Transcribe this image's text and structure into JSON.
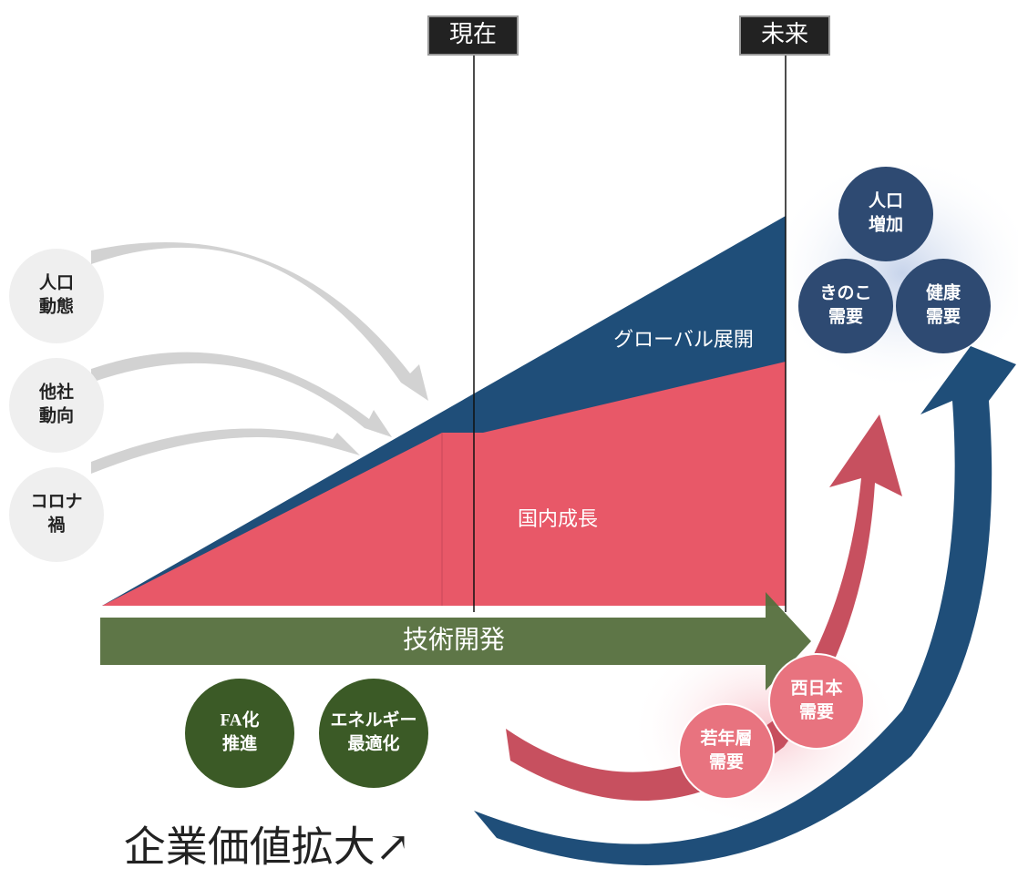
{
  "timeline": {
    "now": "現在",
    "future": "未来"
  },
  "left_factors": [
    [
      "人口",
      "動態"
    ],
    [
      "他社",
      "動向"
    ],
    [
      "コロナ",
      "禍"
    ]
  ],
  "areas": {
    "global": "グローバル展開",
    "domestic": "国内成長"
  },
  "arrow": "技術開発",
  "initiatives": [
    [
      "FA化",
      "推進"
    ],
    [
      "エネルギー",
      "最適化"
    ]
  ],
  "west_demands": [
    [
      "西日本",
      "需要"
    ],
    [
      "若年層",
      "需要"
    ]
  ],
  "future_demands": [
    [
      "人口",
      "増加"
    ],
    [
      "きのこ",
      "需要"
    ],
    [
      "健康",
      "需要"
    ]
  ],
  "footer": "企業価値拡大↗"
}
